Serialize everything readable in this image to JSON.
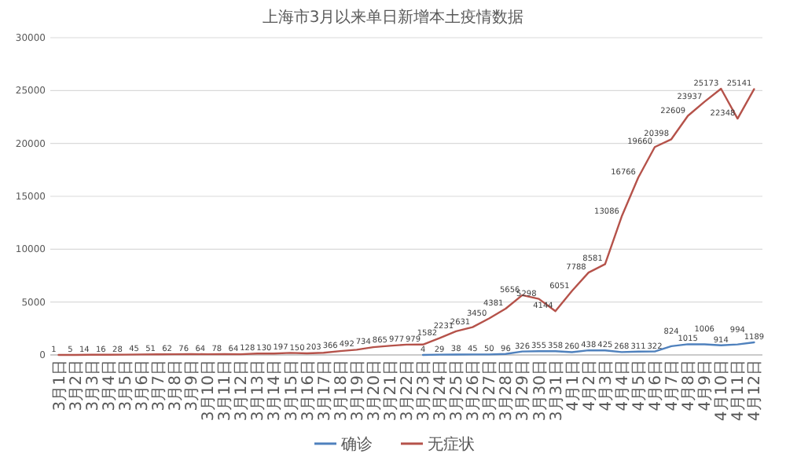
{
  "chart_data": {
    "type": "line",
    "title": "上海市3月以来单日新增本土疫情数据",
    "categories": [
      "3月1日",
      "3月2日",
      "3月3日",
      "3月4日",
      "3月5日",
      "3月6日",
      "3月7日",
      "3月8日",
      "3月9日",
      "3月10日",
      "3月11日",
      "3月12日",
      "3月13日",
      "3月14日",
      "3月15日",
      "3月16日",
      "3月17日",
      "3月18日",
      "3月19日",
      "3月20日",
      "3月21日",
      "3月22日",
      "3月23日",
      "3月24日",
      "3月25日",
      "3月26日",
      "3月27日",
      "3月28日",
      "3月29日",
      "3月30日",
      "3月31日",
      "4月1日",
      "4月2日",
      "4月3日",
      "4月4日",
      "4月5日",
      "4月6日",
      "4月7日",
      "4月8日",
      "4月9日",
      "4月10日",
      "4月11日",
      "4月12日"
    ],
    "series": [
      {
        "name": "确诊",
        "color": "#4f81bd",
        "values": [
          null,
          null,
          null,
          null,
          null,
          null,
          null,
          null,
          null,
          null,
          null,
          null,
          null,
          null,
          null,
          null,
          null,
          null,
          null,
          null,
          null,
          null,
          4,
          29,
          38,
          45,
          50,
          96,
          326,
          355,
          358,
          260,
          438,
          425,
          268,
          311,
          322,
          824,
          1015,
          1006,
          914,
          994,
          1189
        ]
      },
      {
        "name": "无症状",
        "color": "#b5524a",
        "values": [
          1,
          5,
          14,
          16,
          28,
          45,
          51,
          62,
          76,
          64,
          78,
          64,
          128,
          130,
          197,
          150,
          203,
          366,
          492,
          734,
          865,
          977,
          979,
          1582,
          2231,
          2631,
          3450,
          4381,
          5656,
          5298,
          4144,
          6051,
          7788,
          8581,
          13086,
          16766,
          19660,
          20398,
          22609,
          23937,
          25173,
          22348,
          25141
        ]
      }
    ],
    "ylim": [
      0,
      30000
    ],
    "yticks": [
      0,
      5000,
      10000,
      15000,
      20000,
      25000,
      30000
    ],
    "grid": "y",
    "legend": "bottom",
    "data_labels": true,
    "marker": "none",
    "line_style": "solid"
  }
}
